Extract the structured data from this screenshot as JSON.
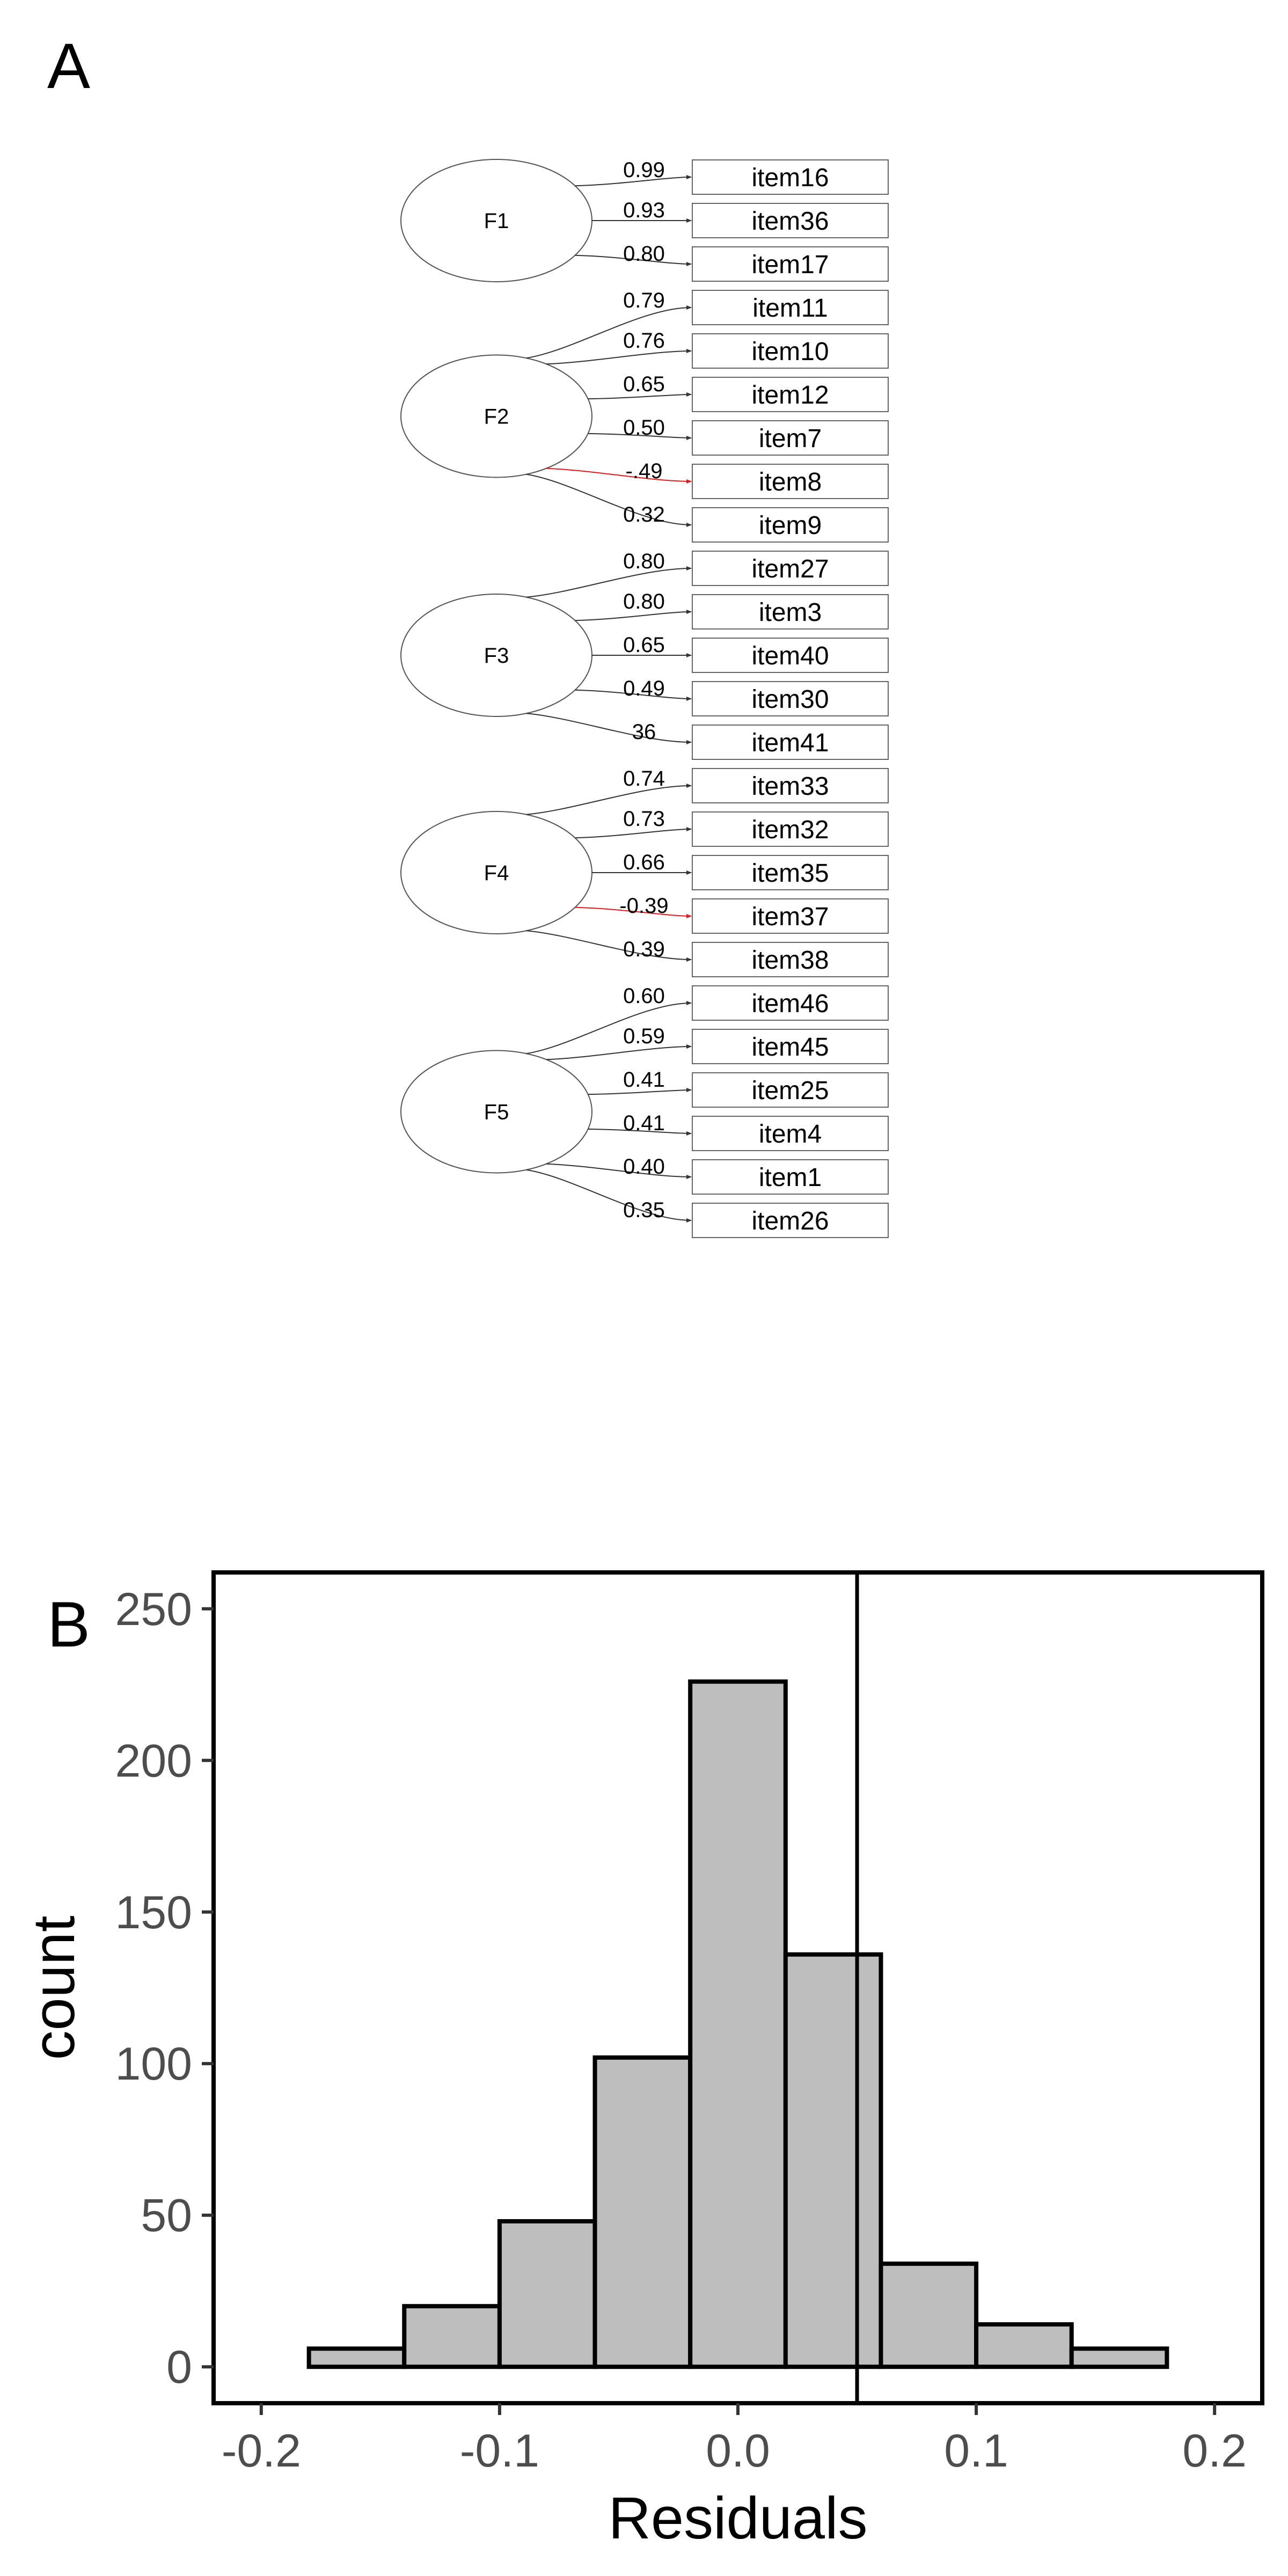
{
  "panel_a": {
    "label": "A",
    "factors": [
      {
        "name": "F1",
        "items": [
          {
            "item": "item16",
            "loading": "0.99",
            "negative": false
          },
          {
            "item": "item36",
            "loading": "0.93",
            "negative": false
          },
          {
            "item": "item17",
            "loading": "0.80",
            "negative": false
          }
        ]
      },
      {
        "name": "F2",
        "items": [
          {
            "item": "item11",
            "loading": "0.79",
            "negative": false
          },
          {
            "item": "item10",
            "loading": "0.76",
            "negative": false
          },
          {
            "item": "item12",
            "loading": "0.65",
            "negative": false
          },
          {
            "item": "item7",
            "loading": "0.50",
            "negative": false
          },
          {
            "item": "item8",
            "loading": "-.49",
            "negative": true
          },
          {
            "item": "item9",
            "loading": "0.32",
            "negative": false
          }
        ]
      },
      {
        "name": "F3",
        "items": [
          {
            "item": "item27",
            "loading": "0.80",
            "negative": false
          },
          {
            "item": "item3",
            "loading": "0.80",
            "negative": false
          },
          {
            "item": "item40",
            "loading": "0.65",
            "negative": false
          },
          {
            "item": "item30",
            "loading": "0.49",
            "negative": false
          },
          {
            "item": "item41",
            "loading": "36",
            "negative": false
          }
        ]
      },
      {
        "name": "F4",
        "items": [
          {
            "item": "item33",
            "loading": "0.74",
            "negative": false
          },
          {
            "item": "item32",
            "loading": "0.73",
            "negative": false
          },
          {
            "item": "item35",
            "loading": "0.66",
            "negative": false
          },
          {
            "item": "item37",
            "loading": "-0.39",
            "negative": true
          },
          {
            "item": "item38",
            "loading": "0.39",
            "negative": false
          }
        ]
      },
      {
        "name": "F5",
        "items": [
          {
            "item": "item46",
            "loading": "0.60",
            "negative": false
          },
          {
            "item": "item45",
            "loading": "0.59",
            "negative": false
          },
          {
            "item": "item25",
            "loading": "0.41",
            "negative": false
          },
          {
            "item": "item4",
            "loading": "0.41",
            "negative": false
          },
          {
            "item": "item1",
            "loading": "0.40",
            "negative": false
          },
          {
            "item": "item26",
            "loading": "0.35",
            "negative": false
          }
        ]
      }
    ],
    "colors": {
      "positive": "#333333",
      "negative": "#e31a1c"
    }
  },
  "chart_data": {
    "type": "bar",
    "panel_label": "B",
    "xlabel": "Residuals",
    "ylabel": "count",
    "xlim": [
      -0.22,
      0.22
    ],
    "ylim": [
      -12,
      262
    ],
    "xticks": [
      -0.2,
      -0.1,
      0.0,
      0.1,
      0.2
    ],
    "xtick_labels": [
      "-0.2",
      "-0.1",
      "0.0",
      "0.1",
      "0.2"
    ],
    "yticks": [
      0,
      50,
      100,
      150,
      200,
      250
    ],
    "ytick_labels": [
      "0",
      "50",
      "100",
      "150",
      "200",
      "250"
    ],
    "bins": [
      {
        "x0": -0.18,
        "x1": -0.14,
        "count": 6
      },
      {
        "x0": -0.14,
        "x1": -0.1,
        "count": 20
      },
      {
        "x0": -0.1,
        "x1": -0.06,
        "count": 48
      },
      {
        "x0": -0.06,
        "x1": -0.02,
        "count": 102
      },
      {
        "x0": -0.02,
        "x1": 0.02,
        "count": 226
      },
      {
        "x0": 0.02,
        "x1": 0.06,
        "count": 136
      },
      {
        "x0": 0.06,
        "x1": 0.1,
        "count": 34
      },
      {
        "x0": 0.1,
        "x1": 0.14,
        "count": 14
      },
      {
        "x0": 0.14,
        "x1": 0.18,
        "count": 6
      }
    ],
    "vline_x": 0.05,
    "bar_fill": "#bebebe",
    "bar_stroke": "#000000",
    "grid": false
  }
}
